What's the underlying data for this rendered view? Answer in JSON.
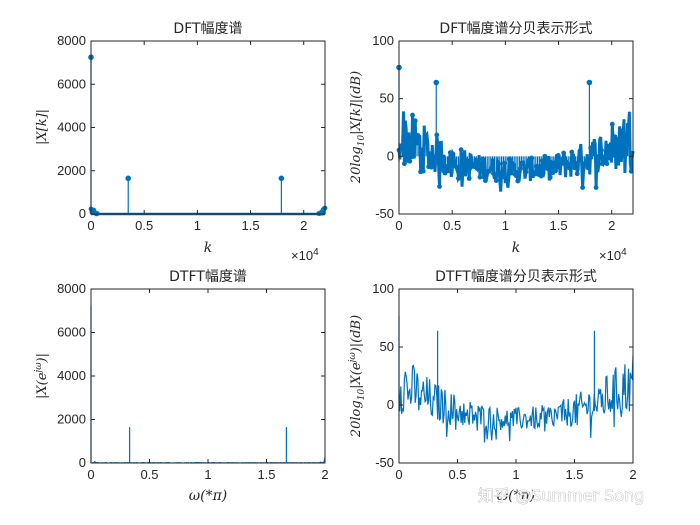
{
  "watermark": "知乎 @Summer Song",
  "chart_data": [
    {
      "id": "p1",
      "type": "stem",
      "title": "DFT幅度谱",
      "xlabel": "k",
      "ylabel": "|X[k]|",
      "x_exponent": "×10^4",
      "xlim": [
        0,
        22000
      ],
      "ylim": [
        0,
        8000
      ],
      "xticks": [
        0,
        5000,
        10000,
        15000,
        20000
      ],
      "xtick_labels": [
        "0",
        "0.5",
        "1",
        "1.5",
        "2"
      ],
      "yticks": [
        0,
        2000,
        4000,
        6000,
        8000
      ],
      "ytick_labels": [
        "0",
        "2000",
        "4000",
        "6000",
        "8000"
      ],
      "peaks": [
        {
          "x": 0,
          "y": 7250
        },
        {
          "x": 3500,
          "y": 1650
        },
        {
          "x": 17900,
          "y": 1650
        }
      ],
      "noise_level": [
        0,
        450
      ],
      "color": "#0072BD"
    },
    {
      "id": "p2",
      "type": "stem",
      "title": "DFT幅度谱分贝表示形式",
      "xlabel": "k",
      "ylabel": "20log10|X[k]|(dB)",
      "x_exponent": "×10^4",
      "xlim": [
        0,
        22000
      ],
      "ylim": [
        -50,
        100
      ],
      "xticks": [
        0,
        5000,
        10000,
        15000,
        20000
      ],
      "xtick_labels": [
        "0",
        "0.5",
        "1",
        "1.5",
        "2"
      ],
      "yticks": [
        -50,
        0,
        50,
        100
      ],
      "ytick_labels": [
        "-50",
        "0",
        "50",
        "100"
      ],
      "peaks": [
        {
          "x": 0,
          "y": 77
        },
        {
          "x": 3500,
          "y": 64
        },
        {
          "x": 17900,
          "y": 64
        }
      ],
      "noise_level": [
        -35,
        50
      ],
      "color": "#0072BD"
    },
    {
      "id": "p3",
      "type": "line",
      "title": "DTFT幅度谱",
      "xlabel": "ω(*π)",
      "ylabel": "|X(e^jω)|",
      "xlim": [
        0,
        2
      ],
      "ylim": [
        0,
        8000
      ],
      "xticks": [
        0,
        0.5,
        1,
        1.5,
        2
      ],
      "xtick_labels": [
        "0",
        "0.5",
        "1",
        "1.5",
        "2"
      ],
      "yticks": [
        0,
        2000,
        4000,
        6000,
        8000
      ],
      "ytick_labels": [
        "0",
        "2000",
        "4000",
        "6000",
        "8000"
      ],
      "peaks": [
        {
          "x": 0,
          "y": 7250
        },
        {
          "x": 0.33,
          "y": 1650
        },
        {
          "x": 1.67,
          "y": 1650
        }
      ],
      "noise_level": [
        0,
        400
      ],
      "color": "#0072BD"
    },
    {
      "id": "p4",
      "type": "line",
      "title": "DTFT幅度谱分贝表示形式",
      "xlabel": "ω(*π)",
      "ylabel": "20log10|X(e^jω)|(dB)",
      "xlim": [
        0,
        2
      ],
      "ylim": [
        -50,
        100
      ],
      "xticks": [
        0,
        0.5,
        1,
        1.5,
        2
      ],
      "xtick_labels": [
        "0",
        "0.5",
        "1",
        "1.5",
        "2"
      ],
      "yticks": [
        -50,
        0,
        50,
        100
      ],
      "ytick_labels": [
        "-50",
        "0",
        "50",
        "100"
      ],
      "peaks": [
        {
          "x": 0,
          "y": 77
        },
        {
          "x": 0.33,
          "y": 64
        },
        {
          "x": 1.67,
          "y": 64
        }
      ],
      "noise_level": [
        -35,
        50
      ],
      "color": "#0072BD"
    }
  ]
}
